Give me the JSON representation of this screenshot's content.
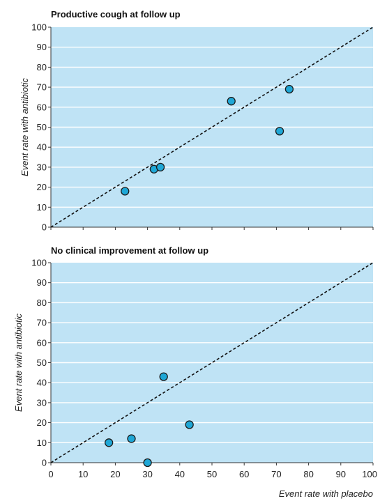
{
  "chart_data": [
    {
      "type": "scatter",
      "title": "Productive cough at follow up",
      "xlabel": "",
      "ylabel": "Event rate with antibiotic",
      "xlim": [
        0,
        100
      ],
      "ylim": [
        0,
        100
      ],
      "xticks": [],
      "yticks": [
        "0",
        "10",
        "20",
        "30",
        "40",
        "50",
        "60",
        "70",
        "80",
        "90",
        "100"
      ],
      "grid": true,
      "reference_line": "y = x (dashed)",
      "point_color": "#1fa7d6",
      "points": [
        {
          "x": 23,
          "y": 18
        },
        {
          "x": 32,
          "y": 29
        },
        {
          "x": 34,
          "y": 30
        },
        {
          "x": 56,
          "y": 63
        },
        {
          "x": 71,
          "y": 48
        },
        {
          "x": 74,
          "y": 69
        }
      ]
    },
    {
      "type": "scatter",
      "title": "No clinical improvement at follow up",
      "xlabel": "Event rate with placebo",
      "ylabel": "Event rate with antibiotic",
      "xlim": [
        0,
        100
      ],
      "ylim": [
        0,
        100
      ],
      "xticks": [
        "0",
        "10",
        "20",
        "30",
        "40",
        "50",
        "60",
        "70",
        "80",
        "90",
        "100"
      ],
      "yticks": [
        "0",
        "10",
        "20",
        "30",
        "40",
        "50",
        "60",
        "70",
        "80",
        "90",
        "100"
      ],
      "grid": true,
      "reference_line": "y = x (dashed)",
      "point_color": "#1fa7d6",
      "points": [
        {
          "x": 18,
          "y": 10
        },
        {
          "x": 25,
          "y": 12
        },
        {
          "x": 30,
          "y": 0
        },
        {
          "x": 35,
          "y": 43
        },
        {
          "x": 43,
          "y": 19
        }
      ]
    }
  ]
}
